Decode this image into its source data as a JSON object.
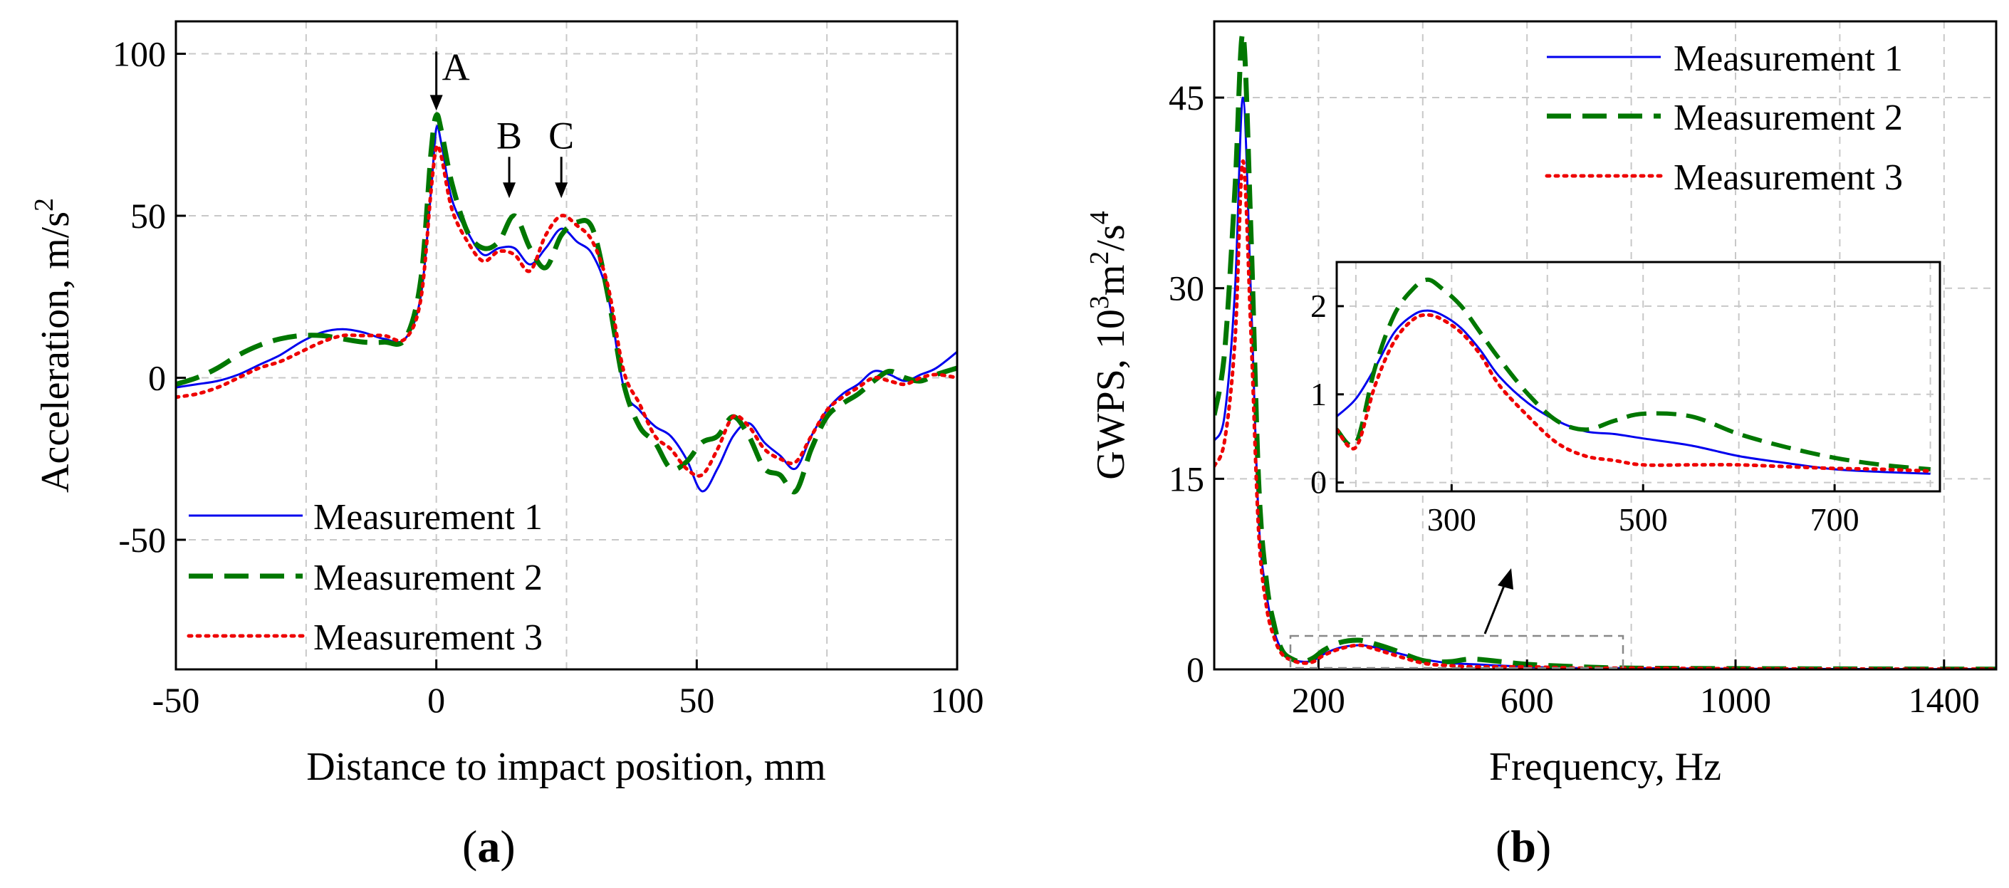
{
  "chart_data": [
    {
      "type": "line",
      "panel_label": "a",
      "xlabel": "Distance to impact position, mm",
      "ylabel": "Acceleration, m/s",
      "ylabel_sup": "2",
      "xlim": [
        -50,
        100
      ],
      "ylim": [
        -90,
        110
      ],
      "xticks": [
        -50,
        0,
        50,
        100
      ],
      "xtick_labels": [
        "-50",
        "0",
        "50",
        "100"
      ],
      "yticks": [
        -50,
        0,
        50,
        100
      ],
      "ytick_labels": [
        "-50",
        "0",
        "50",
        "100"
      ],
      "grid": true,
      "legend_location": "bottom-left",
      "annotations": [
        {
          "label": "A",
          "x": 0,
          "y": 82
        },
        {
          "label": "B",
          "x": 14,
          "y": 55
        },
        {
          "label": "C",
          "x": 24,
          "y": 55
        }
      ],
      "series": [
        {
          "name": "Measurement 1",
          "color": "#0000ee",
          "style": "solid",
          "x": [
            -50,
            -46,
            -42,
            -38,
            -34,
            -30,
            -26,
            -22,
            -18,
            -14,
            -10,
            -6,
            -3,
            -1,
            0,
            1,
            3,
            6,
            9,
            12,
            15,
            18,
            21,
            24,
            27,
            30,
            33,
            36,
            39,
            42,
            45,
            48,
            51,
            54,
            57,
            60,
            63,
            66,
            69,
            72,
            75,
            78,
            81,
            84,
            87,
            90,
            93,
            96,
            100
          ],
          "y": [
            -3,
            -2,
            -1,
            1,
            4,
            7,
            11,
            14,
            15,
            14,
            12,
            12,
            25,
            58,
            77,
            72,
            55,
            45,
            38,
            40,
            40,
            35,
            40,
            46,
            42,
            38,
            25,
            -3,
            -10,
            -15,
            -18,
            -25,
            -35,
            -28,
            -18,
            -14,
            -20,
            -24,
            -28,
            -18,
            -10,
            -5,
            -2,
            2,
            1,
            -1,
            1,
            3,
            8
          ]
        },
        {
          "name": "Measurement 2",
          "color": "#007700",
          "style": "dashed",
          "x": [
            -50,
            -46,
            -42,
            -38,
            -34,
            -30,
            -26,
            -22,
            -18,
            -14,
            -10,
            -6,
            -3,
            -1,
            0,
            1,
            3,
            6,
            9,
            12,
            15,
            18,
            21,
            24,
            27,
            30,
            33,
            36,
            39,
            42,
            45,
            48,
            51,
            54,
            57,
            60,
            63,
            66,
            69,
            72,
            75,
            78,
            81,
            84,
            87,
            90,
            93,
            96,
            100
          ],
          "y": [
            -2,
            0,
            3,
            7,
            10,
            12,
            13,
            13,
            12,
            11,
            11,
            12,
            30,
            70,
            81,
            76,
            60,
            45,
            40,
            42,
            50,
            40,
            34,
            44,
            48,
            46,
            25,
            -2,
            -15,
            -20,
            -28,
            -26,
            -20,
            -18,
            -12,
            -18,
            -28,
            -30,
            -35,
            -22,
            -12,
            -8,
            -5,
            -1,
            2,
            0,
            -1,
            1,
            3
          ]
        },
        {
          "name": "Measurement 3",
          "color": "#ee0000",
          "style": "dotted",
          "x": [
            -50,
            -46,
            -42,
            -38,
            -34,
            -30,
            -26,
            -22,
            -18,
            -14,
            -10,
            -6,
            -3,
            -1,
            0,
            1,
            3,
            6,
            9,
            12,
            15,
            18,
            21,
            24,
            27,
            30,
            33,
            36,
            39,
            42,
            45,
            48,
            51,
            54,
            57,
            60,
            63,
            66,
            69,
            72,
            75,
            78,
            81,
            84,
            87,
            90,
            93,
            96,
            100
          ],
          "y": [
            -6,
            -5,
            -3,
            0,
            3,
            5,
            8,
            11,
            13,
            13,
            13,
            12,
            24,
            58,
            71,
            68,
            52,
            42,
            36,
            39,
            38,
            33,
            44,
            50,
            47,
            42,
            28,
            2,
            -8,
            -18,
            -22,
            -28,
            -30,
            -22,
            -12,
            -15,
            -22,
            -25,
            -26,
            -18,
            -10,
            -6,
            -3,
            0,
            -1,
            -2,
            0,
            1,
            0
          ]
        }
      ]
    },
    {
      "type": "line",
      "panel_label": "b",
      "xlabel": "Frequency, Hz",
      "ylabel": "GWPS, 10",
      "ylabel_parts": [
        "GWPS, 10",
        "3",
        "m",
        "2",
        "/s",
        "4"
      ],
      "xlim": [
        0,
        1500
      ],
      "ylim": [
        0,
        51
      ],
      "xticks": [
        200,
        600,
        1000,
        1400
      ],
      "xtick_labels": [
        "200",
        "600",
        "1000",
        "1400"
      ],
      "yticks": [
        0,
        15,
        30,
        45
      ],
      "ytick_labels": [
        "0",
        "15",
        "30",
        "45"
      ],
      "grid": true,
      "legend_location": "top-right",
      "series": [
        {
          "name": "Measurement 1",
          "color": "#0000ee",
          "style": "solid",
          "x": [
            0,
            20,
            40,
            55,
            70,
            85,
            100,
            115,
            130,
            150,
            170,
            190,
            210,
            240,
            275,
            300,
            340,
            400,
            450,
            500,
            600,
            700,
            800,
            1000,
            1200,
            1500
          ],
          "y": [
            18,
            20,
            30,
            45,
            30,
            12,
            6,
            3,
            1.5,
            0.8,
            0.6,
            0.7,
            1.2,
            1.7,
            1.9,
            1.8,
            1.4,
            0.8,
            0.5,
            0.4,
            0.2,
            0.1,
            0.1,
            0.05,
            0.03,
            0.02
          ]
        },
        {
          "name": "Measurement 2",
          "color": "#007700",
          "style": "dashed",
          "x": [
            0,
            20,
            40,
            55,
            70,
            85,
            100,
            115,
            130,
            150,
            170,
            190,
            210,
            240,
            275,
            300,
            340,
            400,
            450,
            500,
            600,
            700,
            800,
            1000,
            1200,
            1500
          ],
          "y": [
            20,
            25,
            38,
            50,
            35,
            15,
            7,
            3.5,
            1.5,
            0.8,
            0.6,
            0.9,
            1.5,
            2.1,
            2.3,
            2.1,
            1.6,
            0.7,
            0.6,
            0.8,
            0.4,
            0.2,
            0.1,
            0.06,
            0.04,
            0.02
          ]
        },
        {
          "name": "Measurement 3",
          "color": "#ee0000",
          "style": "dotted",
          "x": [
            0,
            20,
            40,
            55,
            70,
            85,
            100,
            115,
            130,
            150,
            170,
            190,
            210,
            240,
            275,
            300,
            340,
            400,
            450,
            500,
            600,
            700,
            800,
            1000,
            1200,
            1500
          ],
          "y": [
            16,
            18,
            26,
            40,
            27,
            11,
            5,
            2.5,
            1.2,
            0.7,
            0.5,
            0.6,
            1.1,
            1.6,
            1.9,
            1.7,
            1.2,
            0.5,
            0.3,
            0.2,
            0.2,
            0.1,
            0.1,
            0.05,
            0.03,
            0.02
          ]
        }
      ],
      "inset": {
        "xlim": [
          180,
          810
        ],
        "ylim": [
          -0.1,
          2.5
        ],
        "xticks": [
          300,
          500,
          700
        ],
        "xtick_labels": [
          "300",
          "500",
          "700"
        ],
        "yticks": [
          0,
          1,
          2
        ],
        "ytick_labels": [
          "0",
          "1",
          "2"
        ],
        "series": [
          {
            "name": "Measurement 1",
            "x": [
              180,
              200,
              220,
              240,
              260,
              275,
              290,
              310,
              330,
              350,
              380,
              410,
              440,
              470,
              500,
              550,
              600,
              650,
              700,
              750,
              800
            ],
            "y": [
              0.75,
              0.95,
              1.3,
              1.7,
              1.9,
              1.95,
              1.9,
              1.75,
              1.5,
              1.2,
              0.9,
              0.7,
              0.58,
              0.55,
              0.5,
              0.42,
              0.3,
              0.22,
              0.15,
              0.12,
              0.1
            ]
          },
          {
            "name": "Measurement 2",
            "x": [
              180,
              200,
              220,
              240,
              260,
              275,
              290,
              310,
              330,
              350,
              380,
              410,
              440,
              470,
              500,
              550,
              600,
              650,
              700,
              750,
              800
            ],
            "y": [
              0.6,
              0.45,
              1.3,
              1.9,
              2.2,
              2.3,
              2.2,
              2.0,
              1.7,
              1.4,
              1.0,
              0.7,
              0.6,
              0.7,
              0.78,
              0.75,
              0.55,
              0.4,
              0.28,
              0.2,
              0.15
            ]
          },
          {
            "name": "Measurement 3",
            "x": [
              180,
              200,
              220,
              240,
              260,
              275,
              290,
              310,
              330,
              350,
              380,
              410,
              440,
              470,
              500,
              550,
              600,
              650,
              700,
              750,
              800
            ],
            "y": [
              0.6,
              0.4,
              1.1,
              1.6,
              1.85,
              1.9,
              1.85,
              1.7,
              1.45,
              1.1,
              0.75,
              0.45,
              0.3,
              0.25,
              0.2,
              0.2,
              0.2,
              0.18,
              0.16,
              0.15,
              0.13
            ]
          }
        ]
      }
    }
  ]
}
